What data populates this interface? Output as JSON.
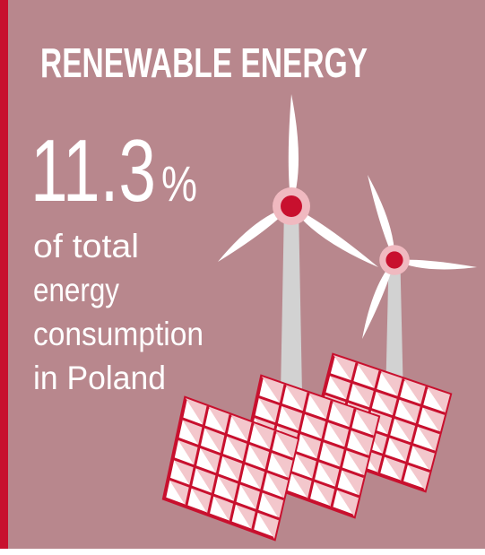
{
  "title": "RENEWABLE ENERGY",
  "stat": {
    "value": 11.3,
    "unit": "%"
  },
  "description": [
    "of total",
    "energy",
    "consumption",
    "in Poland"
  ]
}
